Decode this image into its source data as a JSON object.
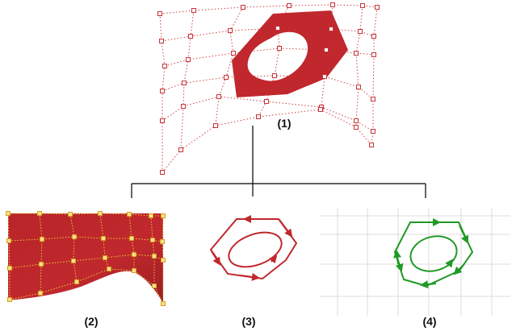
{
  "colors": {
    "surface_red": "#c0282d",
    "surface_dark": "#a51f24",
    "control_point_red": "#c8323a",
    "control_point_yellow": "#f2c832",
    "green": "#1f9a25",
    "connector": "#000000",
    "grid": "#dcdcdc"
  },
  "labels": {
    "panel1": "(1)",
    "panel2": "(2)",
    "panel3": "(3)",
    "panel4": "(4)"
  },
  "icons": {
    "panel1": "trimmed-nurbs-surface-with-control-net",
    "panel2": "untrimmed-base-surface",
    "panel3": "trim-loops-3d-arrows",
    "panel4": "trim-loops-parameter-space-grid"
  }
}
